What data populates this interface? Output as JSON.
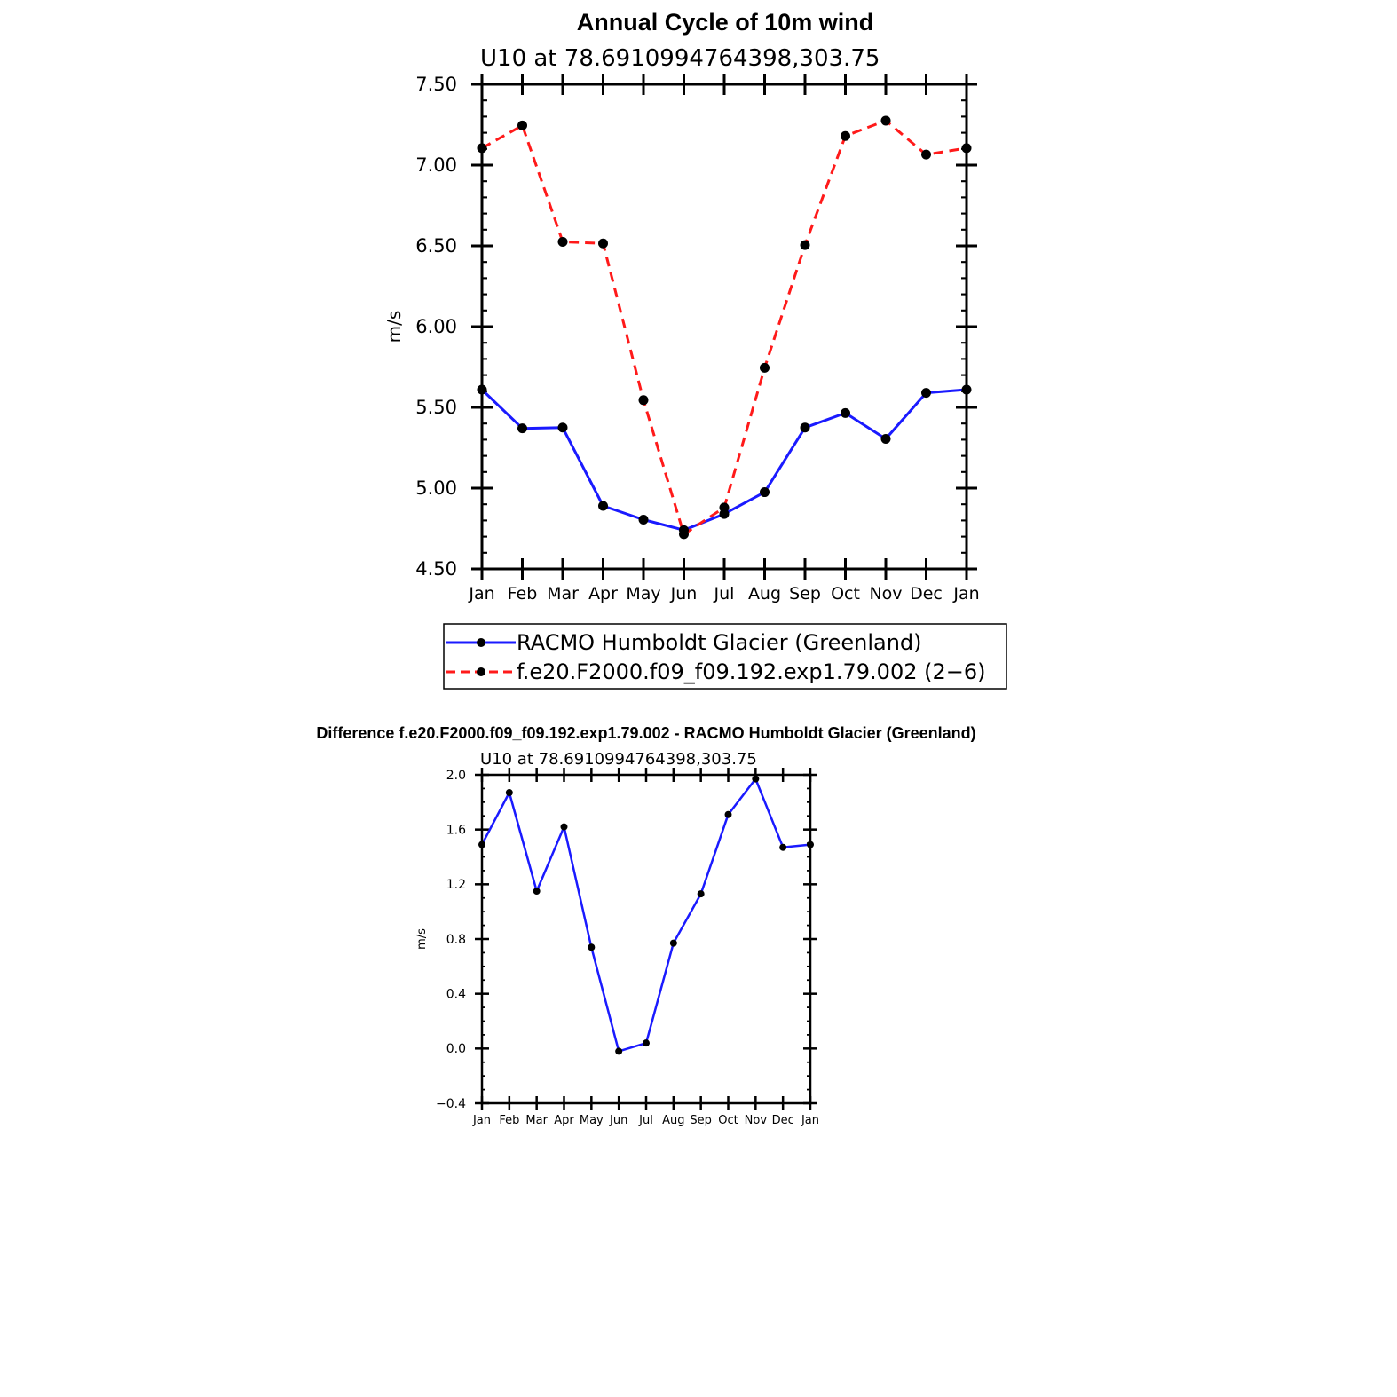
{
  "chart_data": [
    {
      "type": "line",
      "title": "Annual Cycle of 10m wind",
      "subtitle": "U10 at 78.6910994764398,303.75",
      "xlabel": "",
      "ylabel": "m/s",
      "categories": [
        "Jan",
        "Feb",
        "Mar",
        "Apr",
        "May",
        "Jun",
        "Jul",
        "Aug",
        "Sep",
        "Oct",
        "Nov",
        "Dec",
        "Jan"
      ],
      "ylim": [
        4.5,
        7.5
      ],
      "yticks": [
        "7.50",
        "7.00",
        "6.50",
        "6.00",
        "5.50",
        "5.00",
        "4.50"
      ],
      "ytick_values": [
        7.5,
        7.0,
        6.5,
        6.0,
        5.5,
        5.0,
        4.5
      ],
      "series": [
        {
          "name": "RACMO Humboldt Glacier (Greenland)",
          "color": "#1a1aff",
          "dash": "solid",
          "values": [
            5.61,
            5.37,
            5.375,
            4.89,
            4.805,
            4.74,
            4.84,
            4.975,
            5.375,
            5.465,
            5.305,
            5.59,
            5.61
          ]
        },
        {
          "name": "f.e20.F2000.f09_f09.192.exp1.79.002 (2−6)",
          "color": "#ff1a1a",
          "dash": "dashed",
          "values": [
            7.105,
            7.245,
            6.525,
            6.515,
            5.545,
            4.715,
            4.88,
            5.745,
            6.505,
            7.18,
            7.275,
            7.065,
            7.105
          ]
        }
      ],
      "legend": "below"
    },
    {
      "type": "line",
      "title": "Difference f.e20.F2000.f09_f09.192.exp1.79.002 - RACMO Humboldt Glacier (Greenland)",
      "subtitle": "U10 at 78.6910994764398,303.75",
      "xlabel": "",
      "ylabel": "m/s",
      "categories": [
        "Jan",
        "Feb",
        "Mar",
        "Apr",
        "May",
        "Jun",
        "Jul",
        "Aug",
        "Sep",
        "Oct",
        "Nov",
        "Dec",
        "Jan"
      ],
      "ylim": [
        -0.4,
        2.0
      ],
      "yticks": [
        "2.0",
        "1.6",
        "1.2",
        "0.8",
        "0.4",
        "0.0",
        "−0.4"
      ],
      "ytick_values": [
        2.0,
        1.6,
        1.2,
        0.8,
        0.4,
        0.0,
        -0.4
      ],
      "series": [
        {
          "name": "Difference",
          "color": "#1a1aff",
          "dash": "solid",
          "values": [
            1.49,
            1.87,
            1.15,
            1.62,
            0.74,
            -0.02,
            0.04,
            0.77,
            1.13,
            1.71,
            1.97,
            1.47,
            1.49
          ]
        }
      ]
    }
  ]
}
